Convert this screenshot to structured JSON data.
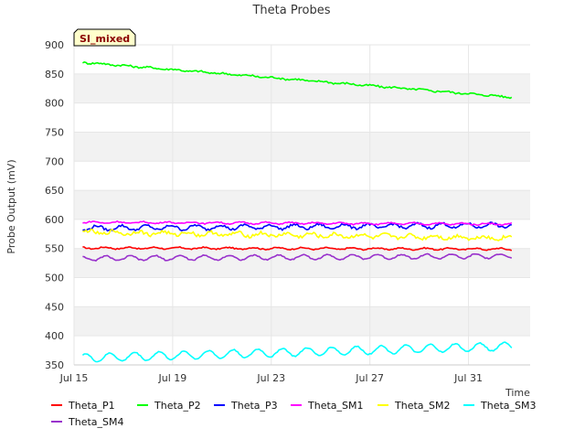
{
  "chart_data": {
    "type": "line",
    "title": "Theta Probes",
    "badge": "SI_mixed",
    "xlabel": "Time",
    "ylabel": "Probe Output (mV)",
    "ylim": [
      350,
      900
    ],
    "yticks": [
      350,
      400,
      450,
      500,
      550,
      600,
      650,
      700,
      750,
      800,
      850,
      900
    ],
    "xlim": [
      0,
      18.5
    ],
    "xticks": [
      {
        "label": "Jul 15",
        "value": 0
      },
      {
        "label": "Jul 19",
        "value": 4
      },
      {
        "label": "Jul 23",
        "value": 8
      },
      {
        "label": "Jul 27",
        "value": 12
      },
      {
        "label": "Jul 31",
        "value": 16
      }
    ],
    "grid": true,
    "x_start": 0.35,
    "x_end": 17.75,
    "series": [
      {
        "name": "Theta_P1",
        "color": "#ff0000",
        "start": 551,
        "end": 549,
        "daily_amp": 1.5,
        "noise": 1
      },
      {
        "name": "Theta_P2",
        "color": "#00ff00",
        "start": 870,
        "end": 810,
        "daily_amp": 1,
        "noise": 1.5
      },
      {
        "name": "Theta_P3",
        "color": "#0000ff",
        "start": 585,
        "end": 590,
        "daily_amp": 4,
        "noise": 2
      },
      {
        "name": "Theta_SM1",
        "color": "#ff00ff",
        "start": 595,
        "end": 592,
        "daily_amp": 1.5,
        "noise": 1
      },
      {
        "name": "Theta_SM2",
        "color": "#ffff00",
        "start": 578,
        "end": 568,
        "daily_amp": 3,
        "noise": 3
      },
      {
        "name": "Theta_SM3",
        "color": "#00ffff",
        "start": 362,
        "end": 382,
        "daily_amp": 7,
        "noise": 1
      },
      {
        "name": "Theta_SM4",
        "color": "#9932cc",
        "start": 533,
        "end": 537,
        "daily_amp": 4,
        "noise": 1
      }
    ]
  }
}
